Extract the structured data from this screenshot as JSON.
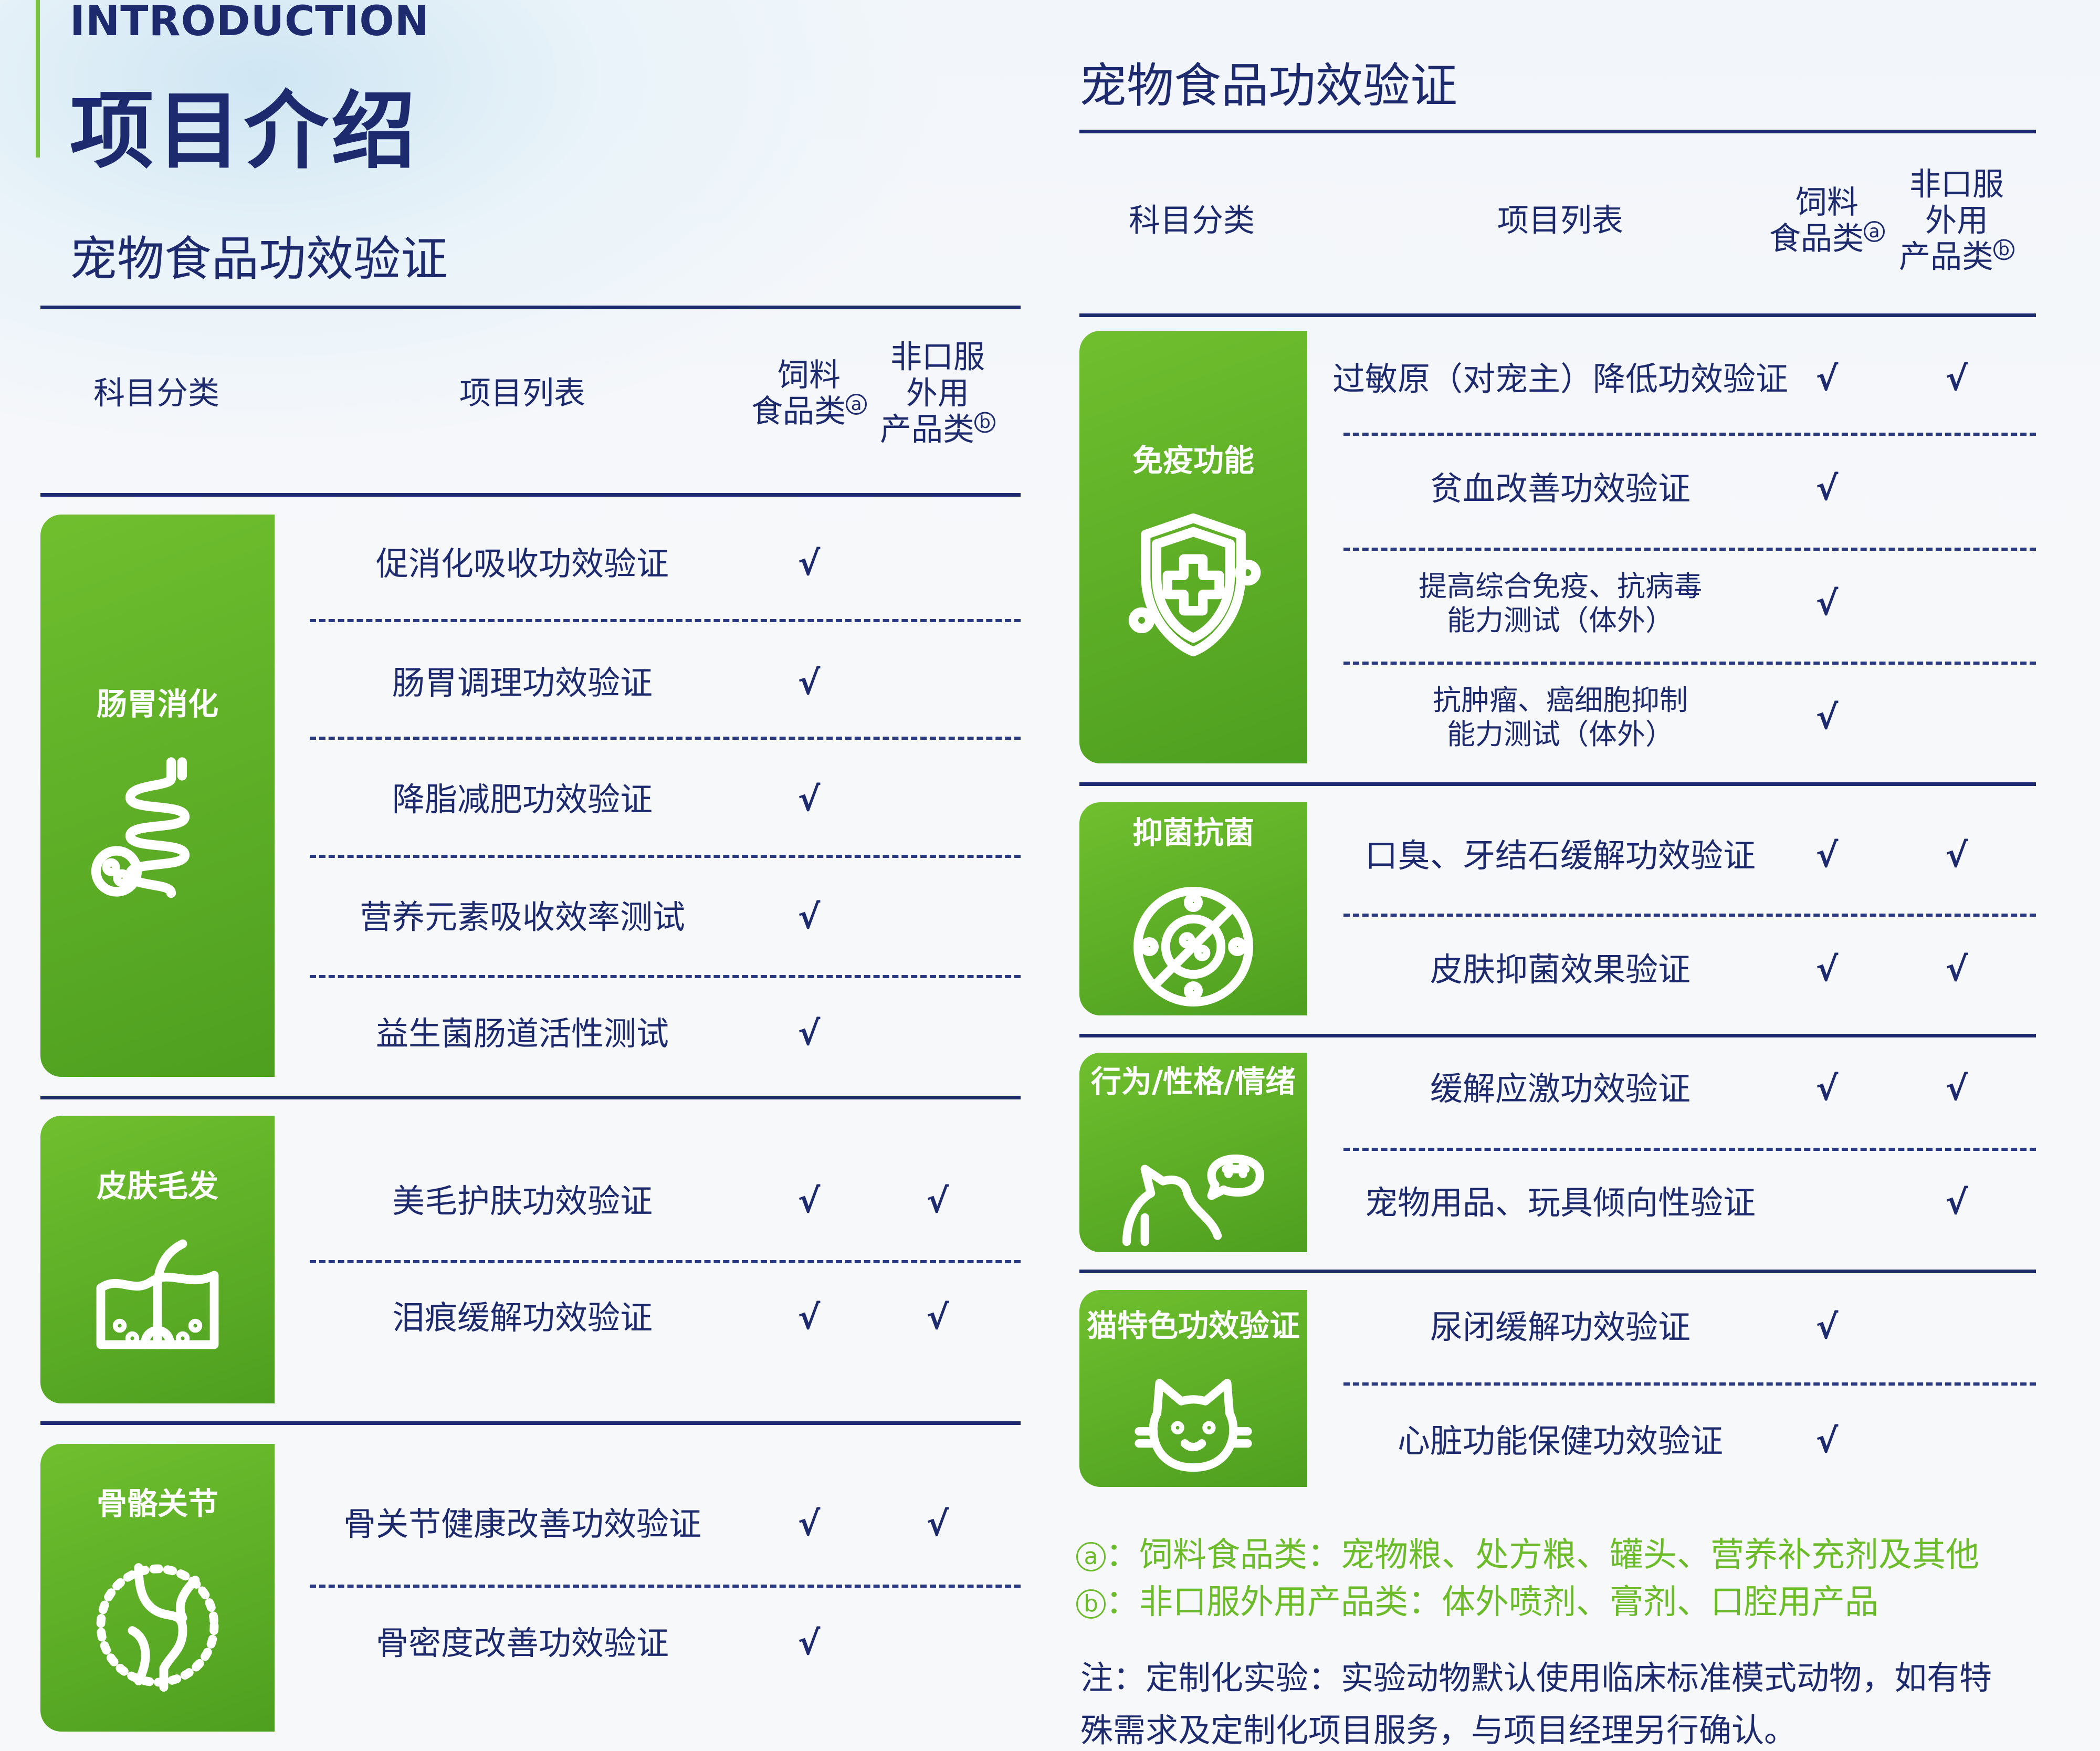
{
  "header": {
    "eyebrow": "INTRODUCTION",
    "title": "项目介绍"
  },
  "columns": {
    "category": "科目分类",
    "items": "项目列表",
    "feed_line1": "饲料",
    "feed_line2": "食品类",
    "feed_mark": "a",
    "nonoral_line1": "非口服",
    "nonoral_line2": "外用",
    "nonoral_line3": "产品类",
    "nonoral_mark": "b"
  },
  "check_symbol": "√",
  "colors": {
    "navy": "#1d2a6e",
    "green": "#5aab25",
    "note_green": "#6cbb2a"
  },
  "left": {
    "title": "宠物食品功效验证",
    "categories": [
      {
        "label": "肠胃消化",
        "icon": "intestine-icon",
        "items": [
          {
            "name": "促消化吸收功效验证",
            "feed": true,
            "nonoral": false
          },
          {
            "name": "肠胃调理功效验证",
            "feed": true,
            "nonoral": false
          },
          {
            "name": "降脂减肥功效验证",
            "feed": true,
            "nonoral": false
          },
          {
            "name": "营养元素吸收效率测试",
            "feed": true,
            "nonoral": false
          },
          {
            "name": "益生菌肠道活性测试",
            "feed": true,
            "nonoral": false
          }
        ]
      },
      {
        "label": "皮肤毛发",
        "icon": "skin-hair-icon",
        "items": [
          {
            "name": "美毛护肤功效验证",
            "feed": true,
            "nonoral": true
          },
          {
            "name": "泪痕缓解功效验证",
            "feed": true,
            "nonoral": true
          }
        ]
      },
      {
        "label": "骨骼关节",
        "icon": "joint-icon",
        "items": [
          {
            "name": "骨关节健康改善功效验证",
            "feed": true,
            "nonoral": true
          },
          {
            "name": "骨密度改善功效验证",
            "feed": true,
            "nonoral": false
          }
        ]
      }
    ]
  },
  "right": {
    "title": "宠物食品功效验证",
    "categories": [
      {
        "label": "免疫功能",
        "icon": "shield-icon",
        "items": [
          {
            "name": "过敏原（对宠主）降低功效验证",
            "feed": true,
            "nonoral": true
          },
          {
            "name": "贫血改善功效验证",
            "feed": true,
            "nonoral": false
          },
          {
            "name": "提高综合免疫、抗病毒\n能力测试（体外）",
            "feed": true,
            "nonoral": false
          },
          {
            "name": "抗肿瘤、癌细胞抑制\n能力测试（体外）",
            "feed": true,
            "nonoral": false
          }
        ]
      },
      {
        "label": "抑菌抗菌",
        "icon": "bacteria-icon",
        "items": [
          {
            "name": "口臭、牙结石缓解功效验证",
            "feed": true,
            "nonoral": true
          },
          {
            "name": "皮肤抑菌效果验证",
            "feed": true,
            "nonoral": true
          }
        ]
      },
      {
        "label": "行为/性格/情绪",
        "icon": "cat-bubble-icon",
        "items": [
          {
            "name": "缓解应激功效验证",
            "feed": true,
            "nonoral": true
          },
          {
            "name": "宠物用品、玩具倾向性验证",
            "feed": false,
            "nonoral": true
          }
        ]
      },
      {
        "label": "猫特色功效验证",
        "icon": "cat-face-icon",
        "items": [
          {
            "name": "尿闭缓解功效验证",
            "feed": true,
            "nonoral": false
          },
          {
            "name": "心脏功能保健功效验证",
            "feed": true,
            "nonoral": false
          }
        ]
      }
    ]
  },
  "notes": {
    "a_mark": "a",
    "a_text": "：饲料食品类：宠物粮、处方粮、罐头、营养补充剂及其他",
    "b_mark": "b",
    "b_text": "：非口服外用产品类：体外喷剂、膏剂、口腔用产品",
    "remark_line1": "注：定制化实验：实验动物默认使用临床标准模式动物，如有特",
    "remark_line2": "殊需求及定制化项目服务，与项目经理另行确认。"
  }
}
